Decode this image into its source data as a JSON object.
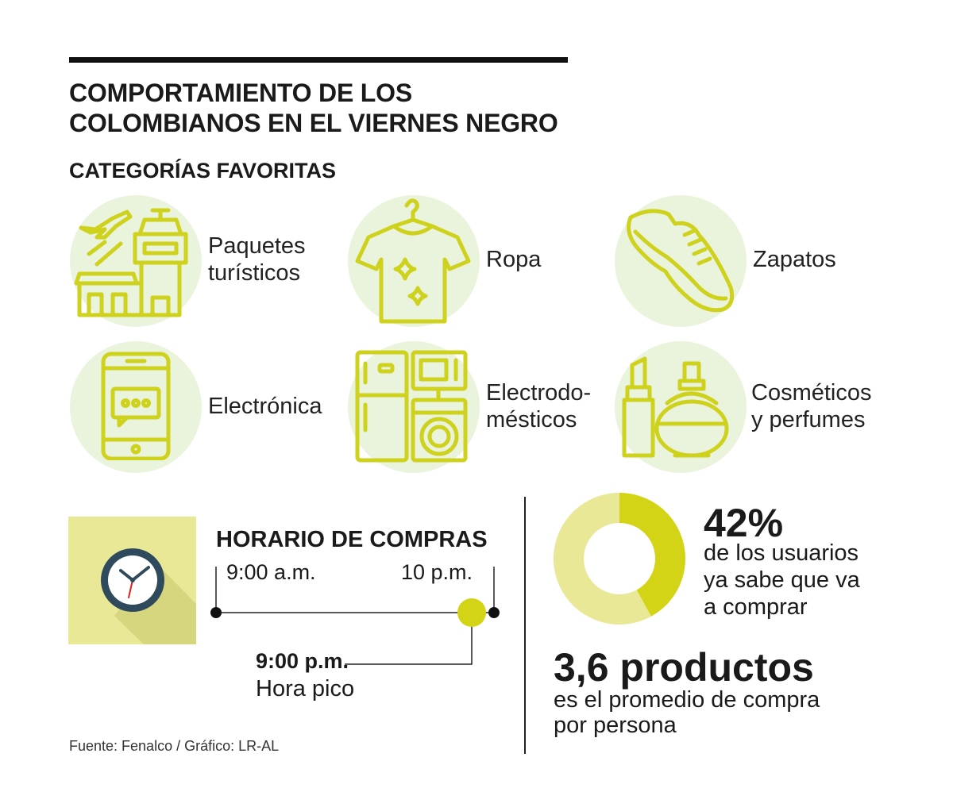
{
  "header": {
    "title_line1": "COMPORTAMIENTO DE LOS",
    "title_line2": "COLOMBIANOS EN EL VIERNES NEGRO",
    "subtitle": "CATEGORÍAS FAVORITAS"
  },
  "categories": [
    {
      "line1": "Paquetes",
      "line2": "turísticos",
      "icon": "travel-airport-icon"
    },
    {
      "line1": "Ropa",
      "line2": "",
      "icon": "shirt-hanger-icon"
    },
    {
      "line1": "Zapatos",
      "line2": "",
      "icon": "sneaker-icon"
    },
    {
      "line1": "Electrónica",
      "line2": "",
      "icon": "smartphone-icon"
    },
    {
      "line1": "Electrodo-",
      "line2": "mésticos",
      "icon": "appliances-icon"
    },
    {
      "line1": "Cosméticos",
      "line2": "y perfumes",
      "icon": "lipstick-perfume-icon"
    }
  ],
  "schedule": {
    "title": "HORARIO DE COMPRAS",
    "start": "9:00 a.m.",
    "end": "10 p.m.",
    "peak_time": "9:00 p.m.",
    "peak_label": "Hora pico",
    "peak_fraction": 0.92
  },
  "stats": {
    "percent": "42%",
    "percent_value": 42,
    "percent_line1": "de los usuarios",
    "percent_line2": "ya sabe que va",
    "percent_line3": "a comprar",
    "products": "3,6 productos",
    "products_line1": "es el promedio de compra",
    "products_line2": "por persona"
  },
  "source": "Fuente: Fenalco / Gráfico: LR-AL",
  "colors": {
    "accent": "#d4d416",
    "accent_light": "#e8e896",
    "icon_bg": "#eaf3dc",
    "icon_stroke": "#cfd21c",
    "clock_dark": "#2e4a5c"
  }
}
